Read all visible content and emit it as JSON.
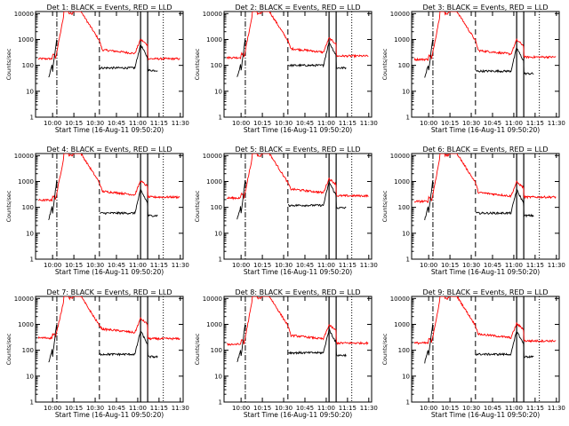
{
  "colors": {
    "events": "#000000",
    "lld": "#ff0000",
    "background": "#ffffff"
  },
  "chart_data": {
    "type": "line",
    "layout": "grid-3x3",
    "time_ticks": [
      "10:00",
      "10:15",
      "10:30",
      "10:45",
      "11:00",
      "11:15",
      "11:30"
    ],
    "x_tick_minutes": [
      0,
      15,
      30,
      45,
      60,
      75,
      90
    ],
    "xlim_minutes": [
      -12,
      92
    ],
    "ylabel": "Counts/sec",
    "ylim": [
      1,
      12000
    ],
    "yscale": "log",
    "y_ticks": [
      1,
      10,
      100,
      1000,
      10000
    ],
    "y_tick_labels": [
      "1",
      "10",
      "100",
      "1000",
      "10000"
    ],
    "xlabel": "Start Time (16-Aug-11 09:50:20)",
    "markers_minutes": {
      "dash_dot": 3,
      "dashed": 33,
      "solid_a": 62,
      "solid_b": 67,
      "dotted": 78
    },
    "panels": [
      {
        "title": "Det 1: BLACK = Events, RED = LLD",
        "events_base": 80,
        "lld_base": 180,
        "lld_tail": 180
      },
      {
        "title": "Det 2: BLACK = Events, RED = LLD",
        "events_base": 100,
        "lld_base": 200,
        "lld_tail": 230
      },
      {
        "title": "Det 3: BLACK = Events, RED = LLD",
        "events_base": 60,
        "lld_base": 170,
        "lld_tail": 210
      },
      {
        "title": "Det 4: BLACK = Events, RED = LLD",
        "events_base": 60,
        "lld_base": 190,
        "lld_tail": 250
      },
      {
        "title": "Det 5: BLACK = Events, RED = LLD",
        "events_base": 120,
        "lld_base": 230,
        "lld_tail": 280
      },
      {
        "title": "Det 6: BLACK = Events, RED = LLD",
        "events_base": 60,
        "lld_base": 170,
        "lld_tail": 250
      },
      {
        "title": "Det 7: BLACK = Events, RED = LLD",
        "events_base": 70,
        "lld_base": 300,
        "lld_tail": 280
      },
      {
        "title": "Det 8: BLACK = Events, RED = LLD",
        "events_base": 80,
        "lld_base": 170,
        "lld_tail": 190
      },
      {
        "title": "Det 9: BLACK = Events, RED = LLD",
        "events_base": 70,
        "lld_base": 190,
        "lld_tail": 230
      }
    ]
  }
}
